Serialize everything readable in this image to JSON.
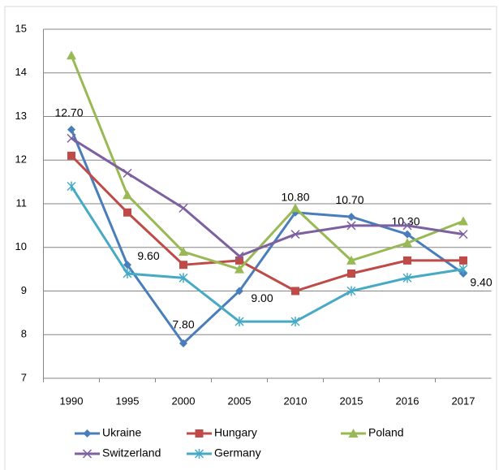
{
  "chart_data": {
    "type": "line",
    "categories": [
      "1990",
      "1995",
      "2000",
      "2005",
      "2010",
      "2015",
      "2016",
      "2017"
    ],
    "series": [
      {
        "name": "Ukraine",
        "color": "#4a7ebb",
        "marker": "diamond",
        "values": [
          12.7,
          9.6,
          7.8,
          9.0,
          10.8,
          10.7,
          10.3,
          9.4
        ],
        "value_labels": [
          "12.70",
          "9.60",
          "7.80",
          "9.00",
          "10.80",
          "10.70",
          "10.30",
          "9.40"
        ]
      },
      {
        "name": "Hungary",
        "color": "#be4b48",
        "marker": "square",
        "values": [
          12.1,
          10.8,
          9.6,
          9.7,
          9.0,
          9.4,
          9.7,
          9.7
        ]
      },
      {
        "name": "Poland",
        "color": "#98b954",
        "marker": "triangle",
        "values": [
          14.4,
          11.2,
          9.9,
          9.5,
          10.9,
          9.7,
          10.1,
          10.6
        ]
      },
      {
        "name": "Switzerland",
        "color": "#7d60a0",
        "marker": "x",
        "values": [
          12.5,
          11.7,
          10.9,
          9.8,
          10.3,
          10.5,
          10.5,
          10.3
        ]
      },
      {
        "name": "Germany",
        "color": "#46aac5",
        "marker": "asterisk",
        "values": [
          11.4,
          9.4,
          9.3,
          8.3,
          8.3,
          9.0,
          9.3,
          9.5
        ]
      }
    ],
    "ylim": [
      7,
      15
    ],
    "yticks": [
      7,
      8,
      9,
      10,
      11,
      12,
      13,
      14,
      15
    ],
    "grid": true,
    "legend": "bottom"
  }
}
